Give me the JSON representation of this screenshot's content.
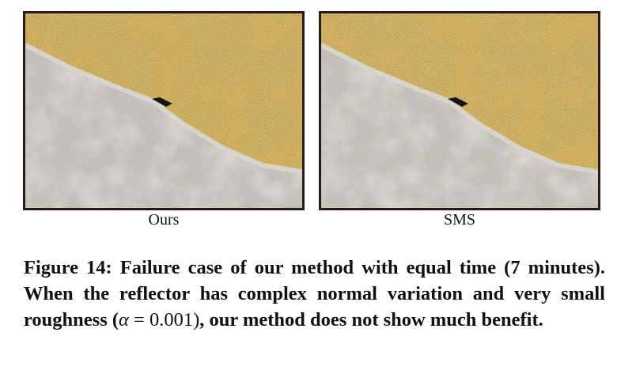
{
  "panels": [
    {
      "label": "Ours"
    },
    {
      "label": "SMS"
    }
  ],
  "caption": {
    "prefix": "Figure 14: Failure case of our method with equal time (7 minutes). When the reflector has complex normal variation and very small roughness (",
    "math_symbol": "α",
    "math_rest": " = 0.001)",
    "suffix": ", our method does not show much benefit."
  },
  "colors": {
    "frame": "#2a1a16",
    "gold": "#c9a34a",
    "silver": "#c6c3bf"
  }
}
